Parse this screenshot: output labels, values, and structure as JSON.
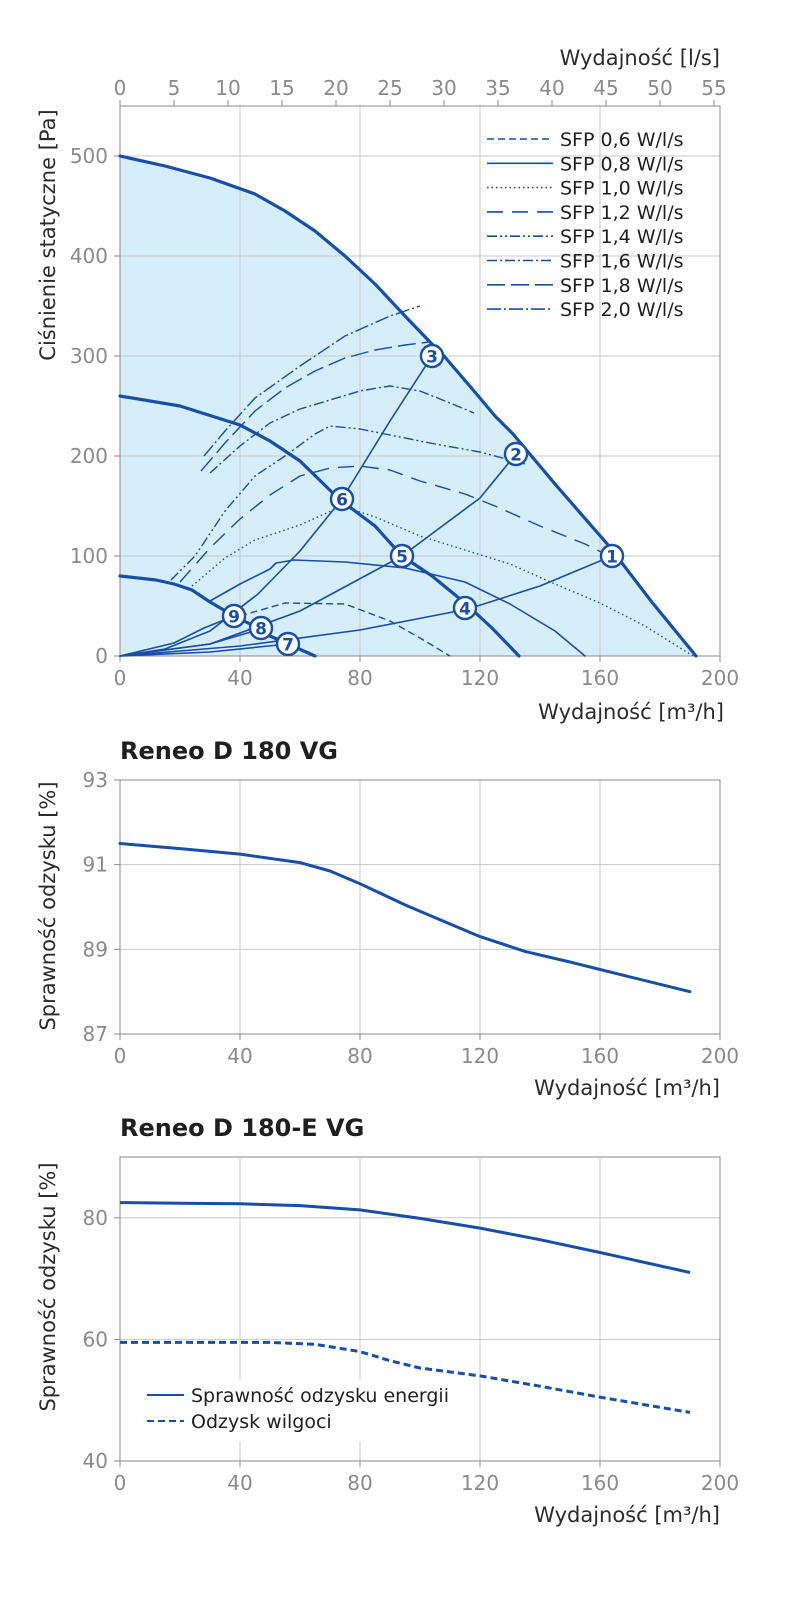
{
  "colors": {
    "curve": "#174ea6",
    "fill": "#d6eefa",
    "grid": "#c8c8c8",
    "axis": "#8a8a8a",
    "tick_text": "#8a8a8a",
    "label_text": "#2b2b2b"
  },
  "chart_data": [
    {
      "type": "line",
      "title": "",
      "xlabel": "Wydajność [m³/h]",
      "x2label": "Wydajność [l/s]",
      "ylabel": "Ciśnienie statyczne [Pa]",
      "xlim": [
        0,
        200
      ],
      "ylim": [
        0,
        550
      ],
      "x2lim": [
        0,
        55.556
      ],
      "xticks": [
        0,
        40,
        80,
        120,
        160,
        200
      ],
      "x2ticks": [
        0,
        5,
        10,
        15,
        20,
        25,
        30,
        35,
        40,
        45,
        50,
        55
      ],
      "yticks": [
        0,
        100,
        200,
        300,
        400,
        500
      ],
      "grid": true,
      "legend_position": "top-right",
      "operating_area": [
        [
          0,
          500
        ],
        [
          15,
          490
        ],
        [
          30,
          478
        ],
        [
          45,
          462
        ],
        [
          55,
          445
        ],
        [
          65,
          425
        ],
        [
          75,
          400
        ],
        [
          85,
          372
        ],
        [
          95,
          340
        ],
        [
          103,
          315
        ],
        [
          108,
          300
        ],
        [
          118,
          265
        ],
        [
          125,
          240
        ],
        [
          131,
          222
        ],
        [
          145,
          172
        ],
        [
          163,
          110
        ],
        [
          177,
          55
        ],
        [
          192,
          0
        ],
        [
          0,
          0
        ]
      ],
      "series": [
        {
          "name": "",
          "role": "max-curve",
          "style": "thick",
          "points": [
            [
              0,
              500
            ],
            [
              15,
              490
            ],
            [
              30,
              478
            ],
            [
              45,
              462
            ],
            [
              55,
              445
            ],
            [
              65,
              425
            ],
            [
              75,
              400
            ],
            [
              85,
              372
            ],
            [
              95,
              340
            ],
            [
              103,
              315
            ],
            [
              108,
              300
            ],
            [
              118,
              265
            ],
            [
              125,
              240
            ],
            [
              131,
              222
            ],
            [
              145,
              172
            ],
            [
              163,
              110
            ],
            [
              177,
              55
            ],
            [
              192,
              0
            ]
          ]
        },
        {
          "name": "",
          "role": "mid-curve",
          "style": "thick",
          "points": [
            [
              0,
              260
            ],
            [
              20,
              250
            ],
            [
              40,
              231
            ],
            [
              50,
              215
            ],
            [
              60,
              195
            ],
            [
              73,
              157
            ],
            [
              85,
              130
            ],
            [
              94,
              100
            ],
            [
              104,
              80
            ],
            [
              115,
              53
            ],
            [
              124,
              28
            ],
            [
              133,
              0
            ]
          ]
        },
        {
          "name": "",
          "role": "min-curve",
          "style": "thick",
          "points": [
            [
              0,
              80
            ],
            [
              12,
              76
            ],
            [
              18,
              72
            ],
            [
              24,
              66
            ],
            [
              30,
              54
            ],
            [
              34,
              47
            ],
            [
              38,
              40
            ],
            [
              44,
              31
            ],
            [
              50,
              20
            ],
            [
              56,
              12
            ],
            [
              65,
              0
            ]
          ]
        },
        {
          "name": "",
          "role": "system-1",
          "style": "thin",
          "points": [
            [
              0,
              0
            ],
            [
              40,
              10
            ],
            [
              80,
              26
            ],
            [
              116,
              47
            ],
            [
              140,
              70
            ],
            [
              164,
              100
            ]
          ]
        },
        {
          "name": "",
          "role": "system-2",
          "style": "thin",
          "points": [
            [
              0,
              0
            ],
            [
              30,
              12
            ],
            [
              60,
              45
            ],
            [
              94,
              100
            ],
            [
              120,
              158
            ],
            [
              132,
              202
            ]
          ]
        },
        {
          "name": "",
          "role": "system-3",
          "style": "thin",
          "points": [
            [
              0,
              0
            ],
            [
              15,
              7
            ],
            [
              30,
              25
            ],
            [
              46,
              62
            ],
            [
              60,
              105
            ],
            [
              74,
              157
            ],
            [
              90,
              235
            ],
            [
              104,
              300
            ]
          ]
        },
        {
          "name": "",
          "role": "system-7",
          "style": "thin",
          "points": [
            [
              0,
              0
            ],
            [
              30,
              4
            ],
            [
              56,
              12
            ]
          ]
        },
        {
          "name": "",
          "role": "system-8",
          "style": "thin",
          "points": [
            [
              0,
              0
            ],
            [
              30,
              12
            ],
            [
              48,
              28
            ]
          ]
        },
        {
          "name": "",
          "role": "system-9",
          "style": "thin",
          "points": [
            [
              0,
              0
            ],
            [
              18,
              13
            ],
            [
              28,
              28
            ],
            [
              38,
              40
            ]
          ]
        },
        {
          "name": "",
          "role": "mid-speed-curve",
          "style": "thin",
          "points": [
            [
              30,
              55
            ],
            [
              40,
              72
            ],
            [
              50,
              87
            ],
            [
              52,
              93
            ],
            [
              58,
              96
            ],
            [
              75,
              94
            ],
            [
              95,
              88
            ],
            [
              115,
              74
            ],
            [
              130,
              52
            ],
            [
              145,
              25
            ],
            [
              155,
              0
            ]
          ]
        },
        {
          "name": "SFP 0,6 W/l/s",
          "dash": "7 4",
          "points": [
            [
              40,
              40
            ],
            [
              55,
              53
            ],
            [
              75,
              52
            ],
            [
              90,
              35
            ],
            [
              100,
              18
            ],
            [
              110,
              0
            ]
          ]
        },
        {
          "name": "SFP 0,8 W/l/s",
          "dash": "",
          "points": [
            [
              0,
              0
            ]
          ]
        },
        {
          "name": "SFP 1,0 W/l/s",
          "dash": "1.5 3",
          "points": [
            [
              24,
              70
            ],
            [
              35,
              98
            ],
            [
              45,
              116
            ],
            [
              60,
              131
            ],
            [
              74,
              150
            ],
            [
              85,
              139
            ],
            [
              100,
              120
            ],
            [
              115,
              106
            ],
            [
              130,
              92
            ],
            [
              145,
              72
            ],
            [
              160,
              53
            ],
            [
              175,
              30
            ],
            [
              191,
              0
            ]
          ]
        },
        {
          "name": "SFP 1,2 W/l/s",
          "dash": "16 9",
          "points": [
            [
              20,
              74
            ],
            [
              30,
              108
            ],
            [
              40,
              137
            ],
            [
              50,
              161
            ],
            [
              60,
              180
            ],
            [
              70,
              188
            ],
            [
              80,
              190
            ],
            [
              90,
              186
            ],
            [
              100,
              175
            ],
            [
              115,
              162
            ],
            [
              125,
              150
            ],
            [
              140,
              130
            ],
            [
              155,
              112
            ],
            [
              163,
              100
            ]
          ]
        },
        {
          "name": "SFP 1,4 W/l/s",
          "dash": "10 3 2 3 2 3",
          "points": [
            [
              17,
              76
            ],
            [
              25,
              100
            ],
            [
              35,
              145
            ],
            [
              45,
              180
            ],
            [
              55,
              200
            ],
            [
              65,
              222
            ],
            [
              70,
              230
            ],
            [
              80,
              227
            ],
            [
              90,
              221
            ],
            [
              105,
              212
            ],
            [
              120,
              204
            ],
            [
              135,
              192
            ]
          ]
        },
        {
          "name": "SFP 1,6 W/l/s",
          "dash": "10 3 2 3",
          "points": [
            [
              30,
              183
            ],
            [
              40,
              210
            ],
            [
              50,
              233
            ],
            [
              60,
              247
            ],
            [
              70,
              256
            ],
            [
              80,
              265
            ],
            [
              90,
              270
            ],
            [
              100,
              265
            ],
            [
              110,
              253
            ],
            [
              118,
              243
            ]
          ]
        },
        {
          "name": "SFP 1,8 W/l/s",
          "dash": "18 6",
          "points": [
            [
              27,
              185
            ],
            [
              35,
              213
            ],
            [
              45,
              245
            ],
            [
              55,
              268
            ],
            [
              65,
              285
            ],
            [
              75,
              298
            ],
            [
              85,
              306
            ],
            [
              95,
              311
            ],
            [
              103,
              314
            ]
          ]
        },
        {
          "name": "SFP 2,0 W/l/s",
          "dash": "14 3 2 3",
          "points": [
            [
              28,
              200
            ],
            [
              35,
              225
            ],
            [
              45,
              258
            ],
            [
              60,
              290
            ],
            [
              75,
              320
            ],
            [
              90,
              340
            ],
            [
              100,
              350
            ]
          ]
        }
      ],
      "markers": [
        {
          "label": "1",
          "x": 164,
          "y": 100
        },
        {
          "label": "2",
          "x": 132,
          "y": 202
        },
        {
          "label": "3",
          "x": 104,
          "y": 300
        },
        {
          "label": "4",
          "x": 115,
          "y": 48
        },
        {
          "label": "5",
          "x": 94,
          "y": 100
        },
        {
          "label": "6",
          "x": 74,
          "y": 157
        },
        {
          "label": "7",
          "x": 56,
          "y": 12
        },
        {
          "label": "8",
          "x": 47,
          "y": 28
        },
        {
          "label": "9",
          "x": 38,
          "y": 40
        }
      ]
    },
    {
      "type": "line",
      "title": "Reneo D 180 VG",
      "xlabel": "Wydajność [m³/h]",
      "ylabel": "Sprawność odzysku [%]",
      "xlim": [
        0,
        200
      ],
      "ylim": [
        87,
        93
      ],
      "xticks": [
        0,
        40,
        80,
        120,
        160,
        200
      ],
      "yticks": [
        87,
        89,
        91,
        93
      ],
      "grid": true,
      "series": [
        {
          "name": "",
          "dash": "",
          "points": [
            [
              0,
              91.5
            ],
            [
              20,
              91.38
            ],
            [
              40,
              91.25
            ],
            [
              60,
              91.05
            ],
            [
              70,
              90.85
            ],
            [
              80,
              90.55
            ],
            [
              95,
              90.05
            ],
            [
              105,
              89.75
            ],
            [
              120,
              89.3
            ],
            [
              135,
              88.95
            ],
            [
              150,
              88.7
            ],
            [
              170,
              88.35
            ],
            [
              190,
              88.0
            ]
          ]
        }
      ]
    },
    {
      "type": "line",
      "title": "Reneo D 180-E VG",
      "xlabel": "Wydajność [m³/h]",
      "ylabel": "Sprawność odzysku [%]",
      "xlim": [
        0,
        200
      ],
      "ylim": [
        40,
        90
      ],
      "xticks": [
        0,
        40,
        80,
        120,
        160,
        200
      ],
      "yticks": [
        40,
        60,
        80
      ],
      "grid": true,
      "legend_position": "bottom-left",
      "series": [
        {
          "name": "Sprawność odzysku energii",
          "dash": "",
          "points": [
            [
              0,
              82.5
            ],
            [
              20,
              82.4
            ],
            [
              40,
              82.3
            ],
            [
              60,
              82.0
            ],
            [
              80,
              81.3
            ],
            [
              100,
              79.9
            ],
            [
              120,
              78.3
            ],
            [
              140,
              76.4
            ],
            [
              160,
              74.3
            ],
            [
              190,
              71.0
            ]
          ]
        },
        {
          "name": "Odzysk wilgoci",
          "dash": "7 4",
          "points": [
            [
              0,
              59.5
            ],
            [
              30,
              59.5
            ],
            [
              50,
              59.5
            ],
            [
              65,
              59.2
            ],
            [
              80,
              58.0
            ],
            [
              90,
              56.5
            ],
            [
              100,
              55.3
            ],
            [
              120,
              54.0
            ],
            [
              140,
              52.3
            ],
            [
              160,
              50.5
            ],
            [
              190,
              48.0
            ]
          ]
        }
      ]
    }
  ]
}
